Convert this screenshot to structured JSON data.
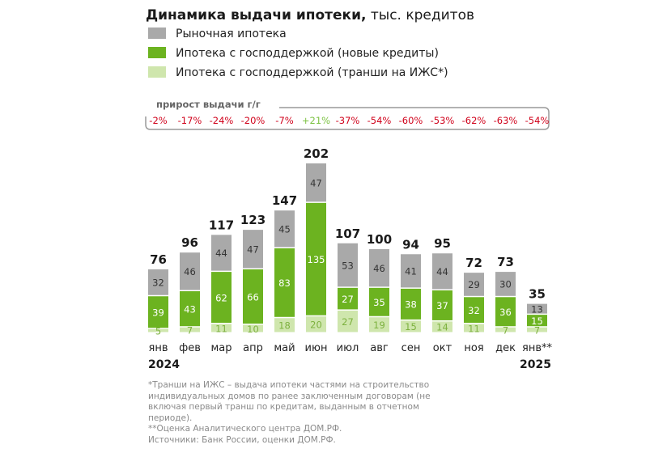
{
  "chart_data": {
    "type": "bar",
    "stacked": true,
    "title_bold": "Динамика выдачи ипотеки,",
    "title_rest": " тыс. кредитов",
    "categories": [
      "янв",
      "фев",
      "мар",
      "апр",
      "май",
      "июн",
      "июл",
      "авг",
      "сен",
      "окт",
      "ноя",
      "дек",
      "янв**"
    ],
    "years": {
      "first": "2024",
      "last": "2025"
    },
    "series": [
      {
        "name": "Ипотека с господдержкой (транши на ИЖС*)",
        "color": "#cfe6ad",
        "label_color": "#7db13f",
        "values": [
          5,
          7,
          11,
          10,
          18,
          20,
          27,
          19,
          15,
          14,
          11,
          7,
          7
        ]
      },
      {
        "name": "Ипотека с господдержкой (новые кредиты)",
        "color": "#6cb320",
        "label_color": "#ffffff",
        "values": [
          39,
          43,
          62,
          66,
          83,
          135,
          27,
          35,
          38,
          37,
          32,
          36,
          15
        ]
      },
      {
        "name": "Рыночная ипотека",
        "color": "#a9a9a9",
        "label_color": "#333333",
        "values": [
          32,
          46,
          44,
          47,
          45,
          47,
          53,
          46,
          41,
          44,
          29,
          30,
          13
        ]
      }
    ],
    "totals": [
      76,
      96,
      117,
      123,
      147,
      202,
      107,
      100,
      94,
      95,
      72,
      73,
      35
    ],
    "growth_label": "прирост выдачи г/г",
    "growth": [
      "-2%",
      "-17%",
      "-24%",
      "-20%",
      "-7%",
      "+21%",
      "-37%",
      "-54%",
      "-60%",
      "-53%",
      "-62%",
      "-63%",
      "-54%"
    ],
    "growth_colors": {
      "negative": "#d0021b",
      "positive": "#7cc242"
    },
    "ylim": [
      0,
      210
    ]
  },
  "footnotes": [
    "*Транши на ИЖС – выдача ипотеки частями на строительство индивидуальных домов по ранее заключенным договорам (не включая первый транш по кредитам, выданным в отчетном периоде).",
    "**Оценка Аналитического центра ДОМ.РФ.",
    "Источники: Банк России, оценки ДОМ.РФ."
  ]
}
